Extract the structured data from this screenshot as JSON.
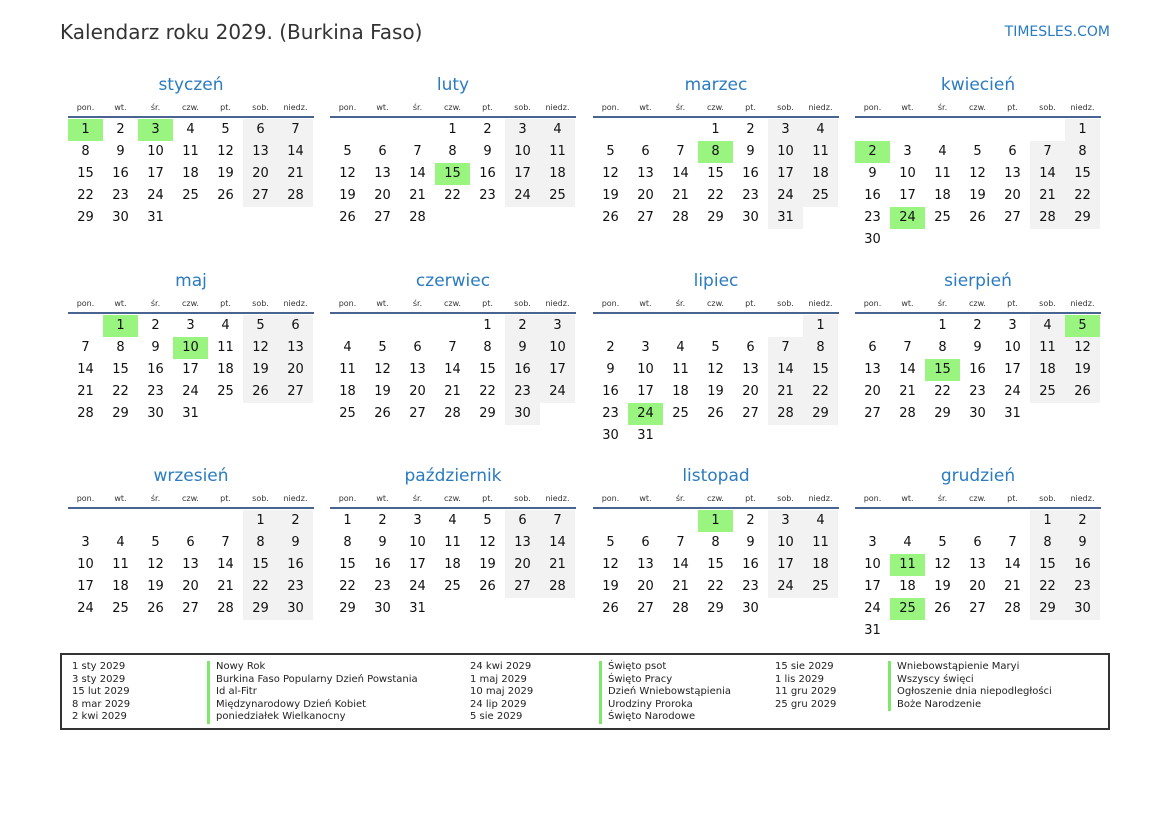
{
  "header": {
    "title": "Kalendarz roku 2029. (Burkina Faso)",
    "brand": "TIMESLES.COM"
  },
  "weekdays": [
    "pon.",
    "wt.",
    "śr.",
    "czw.",
    "pt.",
    "sob.",
    "niedz."
  ],
  "colors": {
    "month_title": "#2a7bc1",
    "holiday": "#99f580",
    "weekend": "#f2f2f2",
    "rule": "#4a6491"
  },
  "months": [
    {
      "name": "styczeń",
      "first_weekday": 0,
      "days": 31,
      "holidays": [
        1,
        3
      ]
    },
    {
      "name": "luty",
      "first_weekday": 3,
      "days": 28,
      "holidays": [
        15
      ]
    },
    {
      "name": "marzec",
      "first_weekday": 3,
      "days": 31,
      "holidays": [
        8
      ]
    },
    {
      "name": "kwiecień",
      "first_weekday": 6,
      "days": 30,
      "holidays": [
        2,
        24
      ]
    },
    {
      "name": "maj",
      "first_weekday": 1,
      "days": 31,
      "holidays": [
        1,
        10
      ]
    },
    {
      "name": "czerwiec",
      "first_weekday": 4,
      "days": 30,
      "holidays": []
    },
    {
      "name": "lipiec",
      "first_weekday": 6,
      "days": 31,
      "holidays": [
        24
      ]
    },
    {
      "name": "sierpień",
      "first_weekday": 2,
      "days": 31,
      "holidays": [
        5,
        15
      ]
    },
    {
      "name": "wrzesień",
      "first_weekday": 5,
      "days": 30,
      "holidays": []
    },
    {
      "name": "październik",
      "first_weekday": 0,
      "days": 31,
      "holidays": []
    },
    {
      "name": "listopad",
      "first_weekday": 3,
      "days": 30,
      "holidays": [
        1
      ]
    },
    {
      "name": "grudzień",
      "first_weekday": 5,
      "days": 31,
      "holidays": [
        11,
        25
      ]
    }
  ],
  "legend": [
    [
      {
        "date": "1 sty 2029",
        "name": "Nowy Rok"
      },
      {
        "date": "3 sty 2029",
        "name": "Burkina Faso Popularny Dzień Powstania"
      },
      {
        "date": "15 lut 2029",
        "name": "Id al-Fitr"
      },
      {
        "date": "8 mar 2029",
        "name": "Międzynarodowy Dzień Kobiet"
      },
      {
        "date": "2 kwi 2029",
        "name": "poniedziałek Wielkanocny"
      }
    ],
    [
      {
        "date": "24 kwi 2029",
        "name": "Święto psot"
      },
      {
        "date": "1 maj 2029",
        "name": "Święto Pracy"
      },
      {
        "date": "10 maj 2029",
        "name": "Dzień Wniebowstąpienia"
      },
      {
        "date": "24 lip 2029",
        "name": "Urodziny Proroka"
      },
      {
        "date": "5 sie 2029",
        "name": "Święto Narodowe"
      }
    ],
    [
      {
        "date": "15 sie 2029",
        "name": "Wniebowstąpienie Maryi"
      },
      {
        "date": "1 lis 2029",
        "name": "Wszyscy święci"
      },
      {
        "date": "11 gru 2029",
        "name": "Ogłoszenie dnia niepodległości"
      },
      {
        "date": "25 gru 2029",
        "name": "Boże Narodzenie"
      }
    ]
  ]
}
